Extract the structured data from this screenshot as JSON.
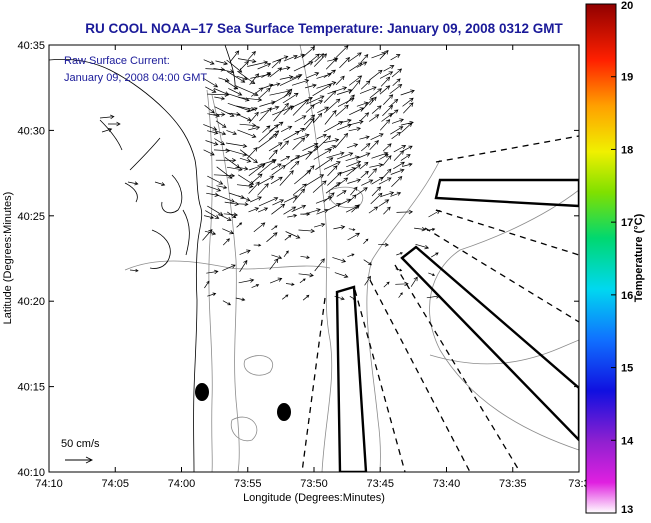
{
  "chart_data": {
    "type": "map",
    "title": "RU COOL  NOAA–17  Sea Surface Temperature:  January 09, 2008 0312 GMT",
    "xlabel": "Longitude (Degrees:Minutes)",
    "ylabel": "Latitude (Degrees:Minutes)",
    "x_ticks": [
      "74:10",
      "74:05",
      "74:00",
      "73:55",
      "73:50",
      "73:45",
      "73:40",
      "73:35",
      "73:3"
    ],
    "y_ticks": [
      "40:35",
      "40:30",
      "40:25",
      "40:20",
      "40:15",
      "40:10"
    ],
    "xlim_minutes_west": [
      10,
      -30
    ],
    "ylim_minutes_north": [
      10,
      35
    ],
    "legend_lines": [
      "Raw Surface Current:",
      "January 09, 2008 04:00 GMT"
    ],
    "scale_label": "50 cm/s",
    "colorbar": {
      "label": "Temperature (°C)",
      "range": [
        13,
        20
      ],
      "ticks": [
        "20",
        "19",
        "18",
        "17",
        "16",
        "15",
        "14",
        "13"
      ]
    }
  },
  "colors": {
    "title": "#1a1a99",
    "land": "#ffffff",
    "ocean": "#ffffff"
  }
}
